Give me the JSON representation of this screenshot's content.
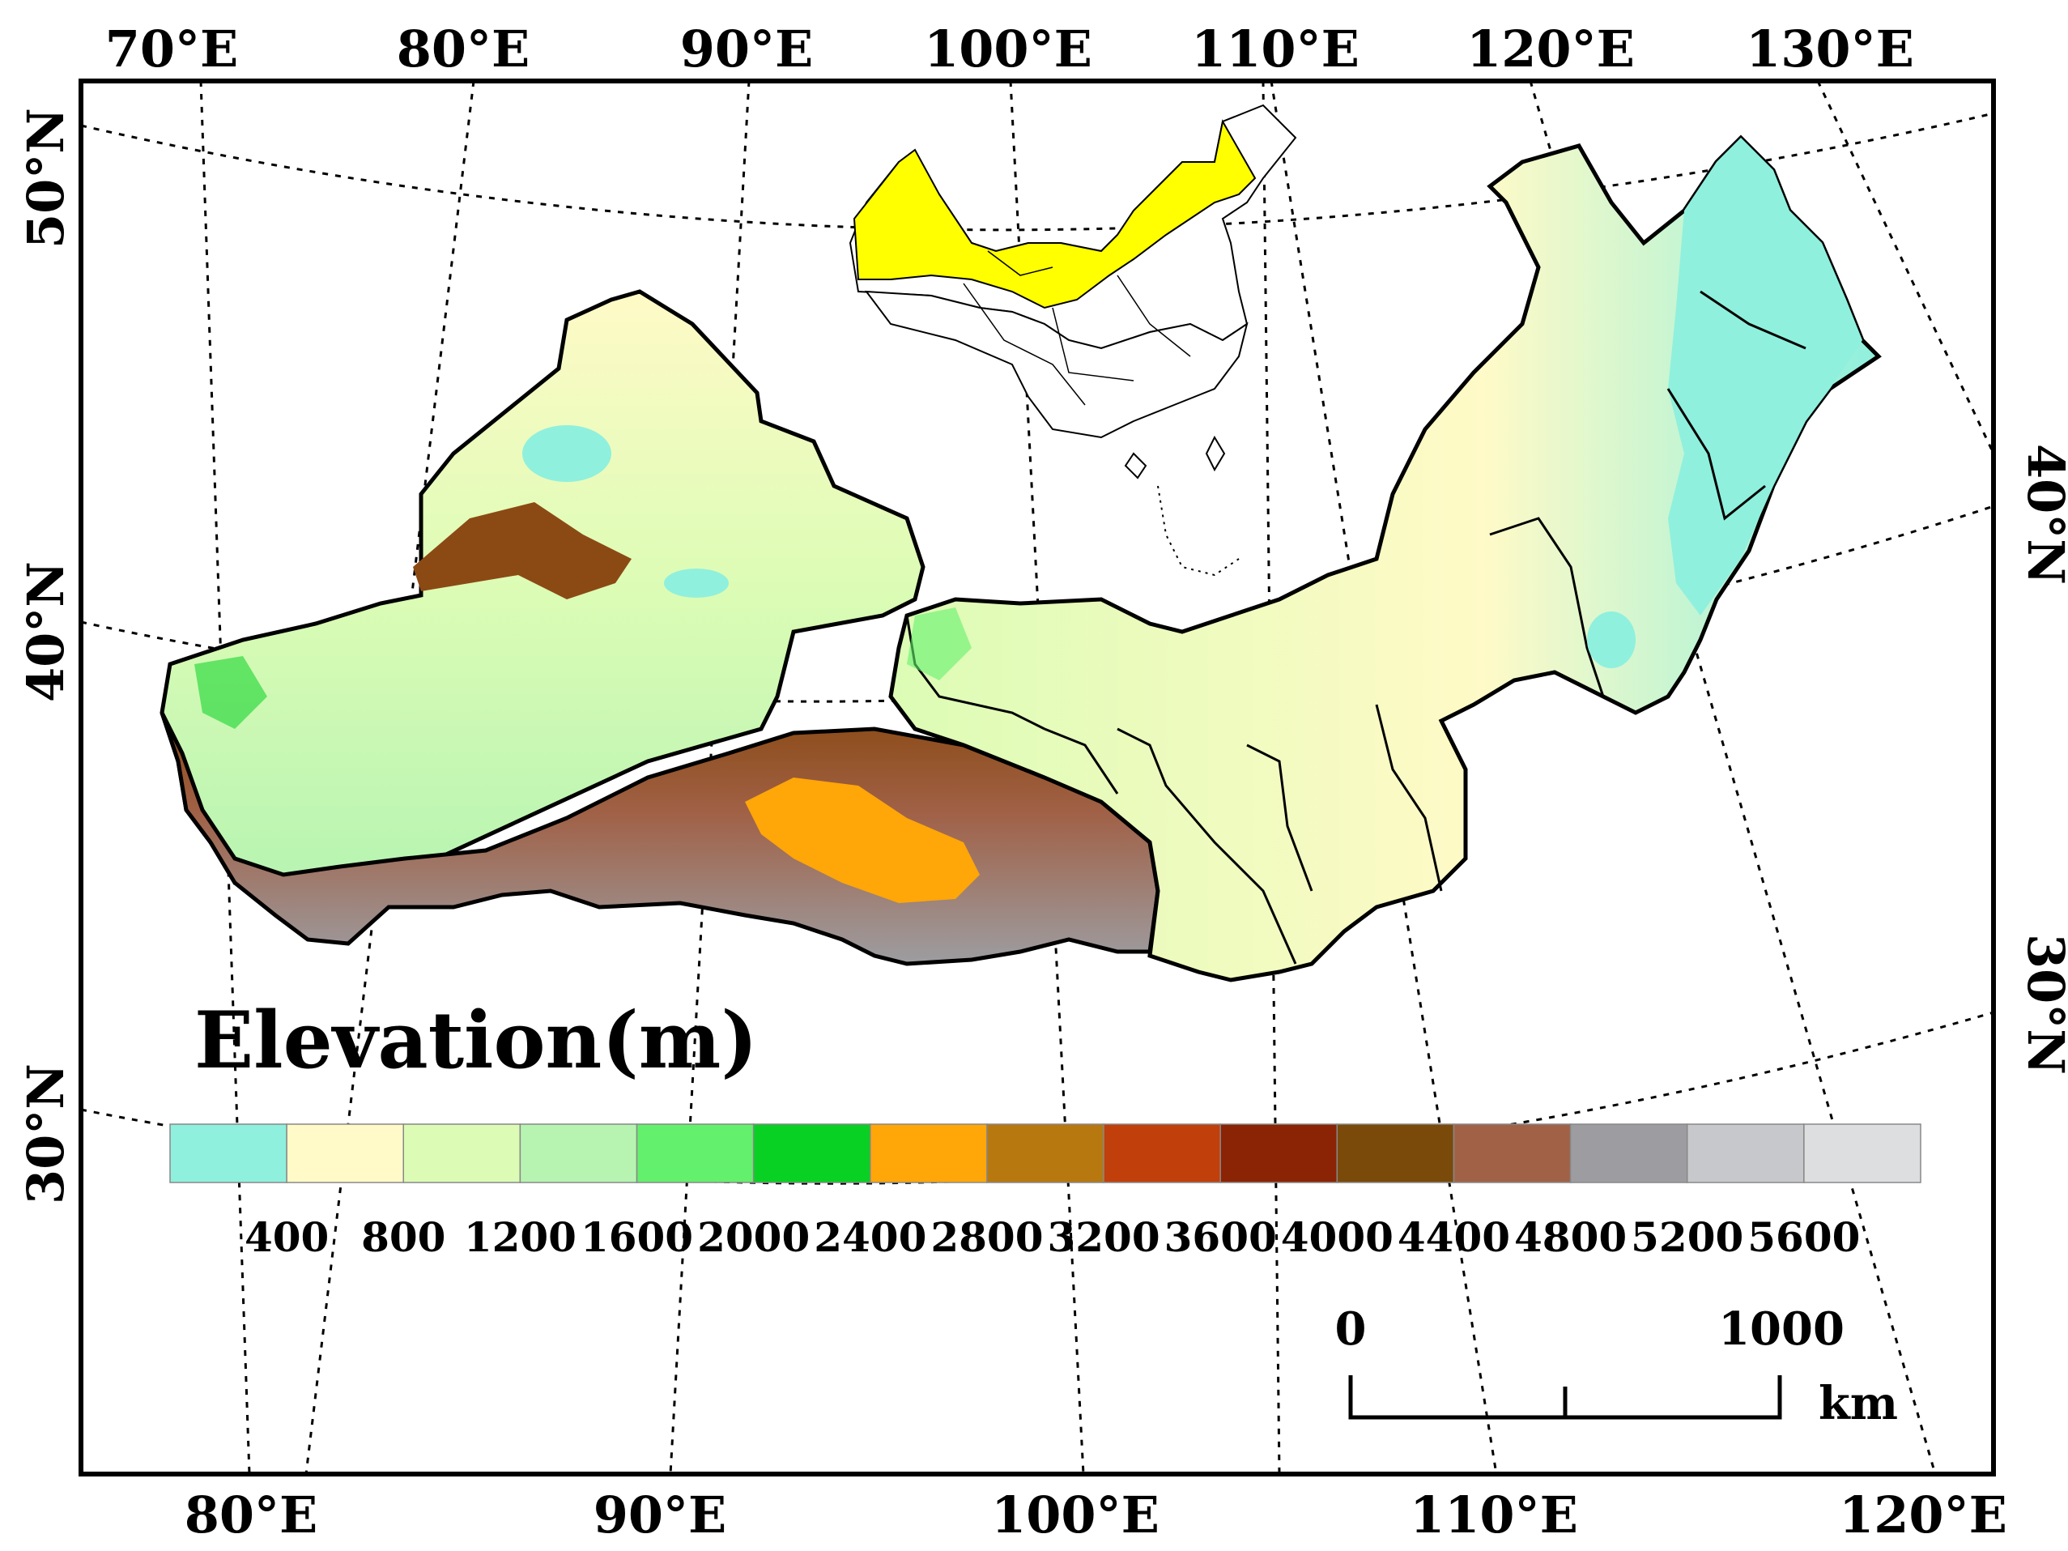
{
  "map": {
    "top_labels": [
      "70°E",
      "80°E",
      "90°E",
      "100°E",
      "110°E",
      "120°E",
      "130°E"
    ],
    "bottom_labels": [
      "80°E",
      "90°E",
      "100°E",
      "110°E",
      "120°E"
    ],
    "left_labels": [
      "50°N",
      "40°N",
      "30°N"
    ],
    "right_labels": [
      "40°N",
      "30°N"
    ]
  },
  "legend": {
    "title": "Elevation(m)",
    "colors": [
      "#8ff0dd",
      "#fffac7",
      "#dcfcb5",
      "#b7f4b2",
      "#63f06c",
      "#08d123",
      "#ffa608",
      "#b7780f",
      "#c13f0a",
      "#8b2305",
      "#7a4a0a",
      "#a06147",
      "#9d9da1",
      "#c6c8cb",
      "#dcdedf"
    ],
    "ticks": [
      "400",
      "800",
      "1200",
      "1600",
      "2000",
      "2400",
      "2800",
      "3200",
      "3600",
      "4000",
      "4400",
      "4800",
      "5200",
      "5600"
    ]
  },
  "scale_bar": {
    "start": "0",
    "end": "1000",
    "unit": "km"
  },
  "inset": {
    "highlight_color": "#ffff00"
  }
}
